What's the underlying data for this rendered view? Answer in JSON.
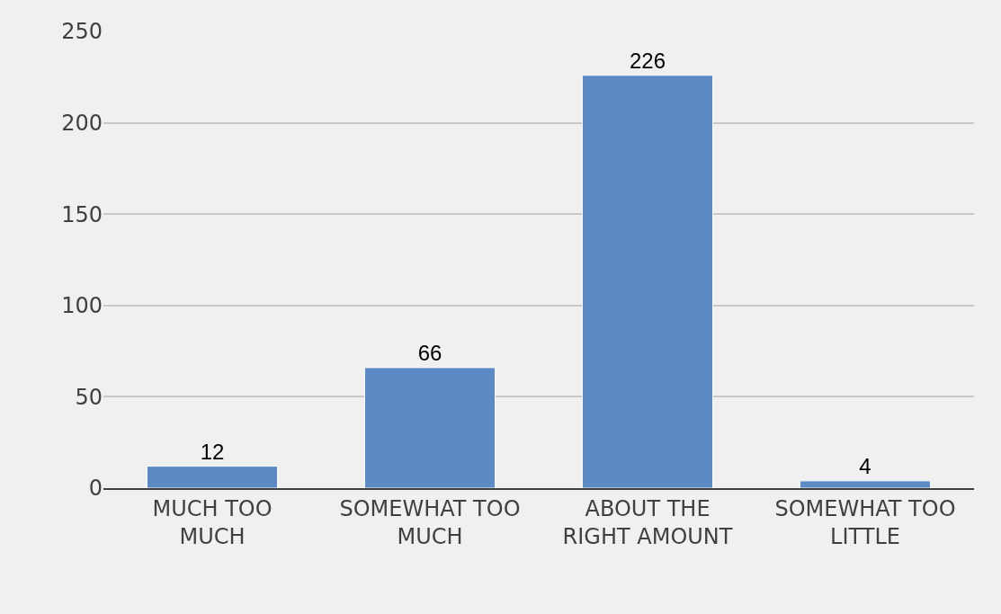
{
  "chart_data": {
    "type": "bar",
    "categories": [
      "MUCH TOO MUCH",
      "SOMEWHAT TOO MUCH",
      "ABOUT THE RIGHT AMOUNT",
      "SOMEWHAT TOO LITTLE"
    ],
    "values": [
      12,
      66,
      226,
      4
    ],
    "color": "#5b8ac4",
    "ylim": [
      0,
      250
    ],
    "yticks": [
      0,
      50,
      100,
      150,
      200,
      250
    ],
    "grid": "y",
    "data_labels": true,
    "legend": false
  }
}
